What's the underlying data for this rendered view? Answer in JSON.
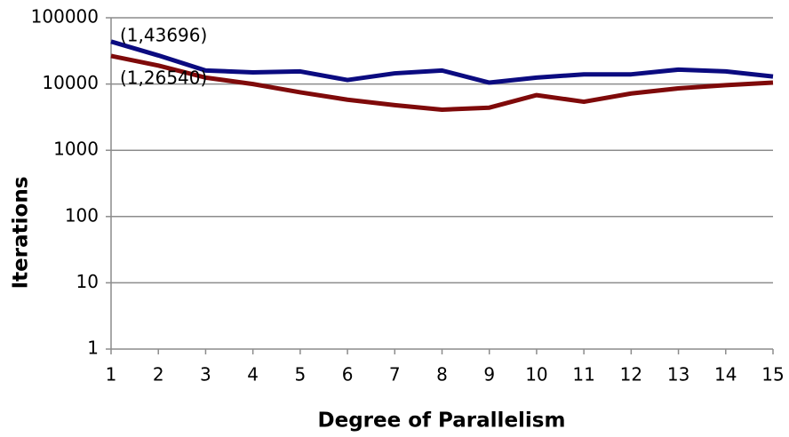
{
  "chart_data": {
    "type": "line",
    "xlabel": "Degree of Parallelism",
    "ylabel": "Iterations",
    "x": [
      1,
      2,
      3,
      4,
      5,
      6,
      7,
      8,
      9,
      10,
      11,
      12,
      13,
      14,
      15
    ],
    "series": [
      {
        "color": "#0b0b80",
        "values": [
          43696,
          27000,
          16000,
          15000,
          15500,
          11500,
          14500,
          16000,
          10500,
          12500,
          14000,
          14000,
          16500,
          15500,
          13000
        ]
      },
      {
        "color": "#7f0a0a",
        "values": [
          26540,
          19000,
          12500,
          10000,
          7500,
          5800,
          4800,
          4100,
          4400,
          6800,
          5400,
          7200,
          8600,
          9600,
          10500
        ]
      }
    ],
    "annotations": [
      "(1,43696)",
      "(1,26540)"
    ],
    "xlim": [
      1,
      15
    ],
    "xticks": [
      1,
      2,
      3,
      4,
      5,
      6,
      7,
      8,
      9,
      10,
      11,
      12,
      13,
      14,
      15
    ],
    "ylim": [
      1,
      100000
    ],
    "yticks": [
      1,
      10,
      100,
      1000,
      10000,
      100000
    ],
    "ylog": true,
    "grid": true
  }
}
